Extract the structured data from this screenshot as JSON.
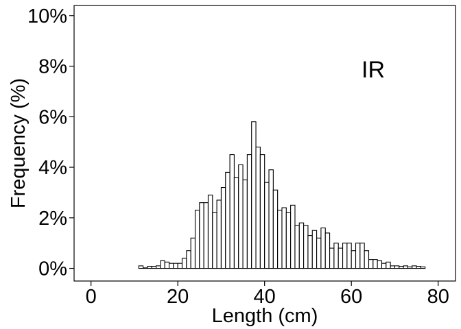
{
  "chart_data": {
    "type": "bar",
    "xlabel": "Length (cm)",
    "ylabel": "Frequency (%)",
    "annotation": "IR",
    "xlim": [
      -3.9,
      84.0
    ],
    "ylim": [
      -0.5,
      10.4
    ],
    "x_ticks": [
      0,
      20,
      40,
      60,
      80
    ],
    "x_tick_labels": [
      "0",
      "20",
      "40",
      "60",
      "80"
    ],
    "y_ticks": [
      0,
      2,
      4,
      6,
      8,
      10
    ],
    "y_tick_labels": [
      "0%",
      "2%",
      "4%",
      "6%",
      "8%",
      "10%"
    ],
    "bin_width": 1,
    "bin_start": 0,
    "values": [
      0,
      0,
      0,
      0,
      0,
      0,
      0,
      0,
      0,
      0,
      0,
      0.1,
      0.02,
      0.08,
      0.08,
      0.1,
      0.3,
      0.25,
      0.2,
      0.2,
      0.2,
      0.4,
      0.7,
      1.2,
      2.3,
      2.6,
      2.6,
      2.9,
      2.2,
      2.7,
      3.2,
      3.8,
      4.5,
      3.6,
      4.1,
      3.5,
      4.5,
      5.8,
      4.8,
      4.5,
      3.4,
      3.9,
      3.1,
      2.3,
      2.4,
      2.2,
      2.5,
      1.7,
      1.8,
      1.7,
      1.3,
      1.5,
      1.2,
      1.6,
      1.4,
      0.8,
      1.0,
      0.8,
      1.0,
      1.0,
      0.7,
      1.0,
      1.0,
      0.7,
      0.35,
      0.35,
      0.3,
      0.2,
      0.25,
      0.1,
      0.1,
      0.08,
      0.1,
      0.06,
      0.1,
      0.08,
      0.06,
      0,
      0,
      0
    ]
  }
}
